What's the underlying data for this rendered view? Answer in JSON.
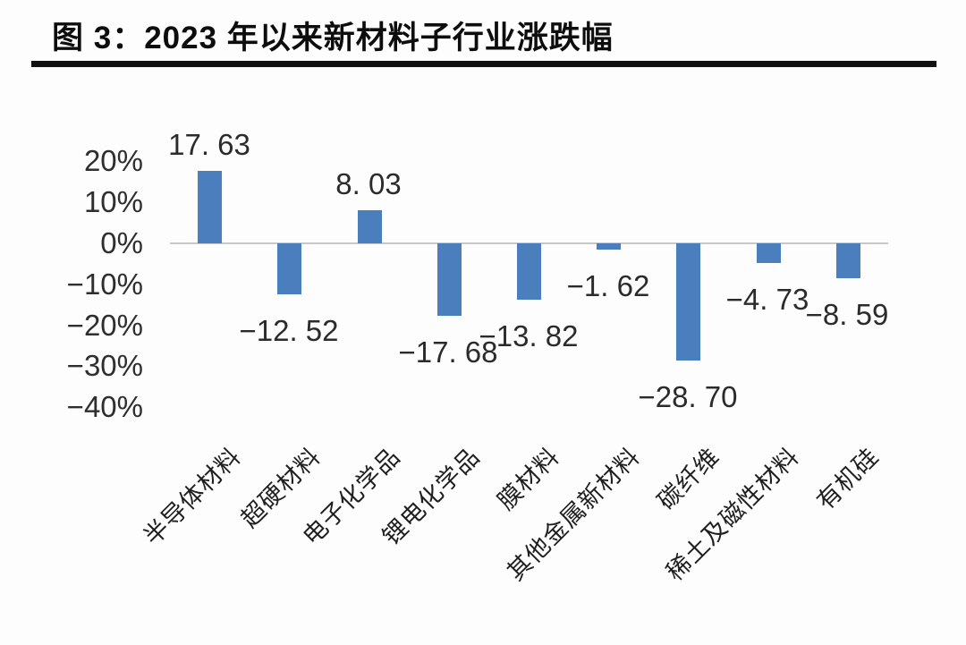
{
  "figure": {
    "title": "图 3：2023 年以来新材料子行业涨跌幅"
  },
  "chart_data": {
    "type": "bar",
    "title": "2023 年以来新材料子行业涨跌幅",
    "categories": [
      "半导体材料",
      "超硬材料",
      "电子化学品",
      "锂电化学品",
      "膜材料",
      "其他金属新材料",
      "碳纤维",
      "稀土及磁性材料",
      "有机硅"
    ],
    "values": [
      17.63,
      -12.52,
      8.03,
      -17.68,
      -13.82,
      -1.62,
      -28.7,
      -4.73,
      -8.59
    ],
    "value_labels": [
      "17. 63",
      "−12. 52",
      "8. 03",
      "−17. 68",
      "−13. 82",
      "−1. 62",
      "−28. 70",
      "−4. 73",
      "−8. 59"
    ],
    "xlabel": "",
    "ylabel": "",
    "y_ticks": [
      {
        "label": "20%",
        "value": 20
      },
      {
        "label": "10%",
        "value": 10
      },
      {
        "label": "0%",
        "value": 0
      },
      {
        "label": "−10%",
        "value": -10
      },
      {
        "label": "−20%",
        "value": -20
      },
      {
        "label": "−30%",
        "value": -30
      },
      {
        "label": "−40%",
        "value": -40
      }
    ],
    "ylim": [
      -40,
      25
    ],
    "grid": false,
    "legend": false,
    "bar_color": "#4a7ebd",
    "axis_line_color": "#c8c8c8"
  }
}
